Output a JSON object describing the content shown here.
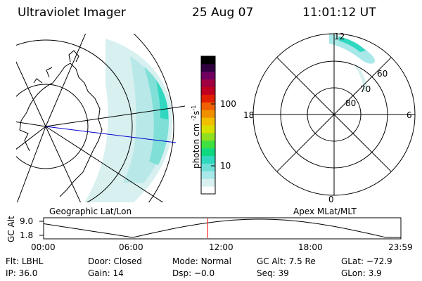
{
  "header": {
    "instrument": "Ultraviolet Imager",
    "date": "25 Aug 07",
    "time": "11:01:12 UT"
  },
  "geo_panel": {
    "label": "Geographic Lat/Lon"
  },
  "mag_panel": {
    "label": "Apex MLat/MLT",
    "lat_labels": [
      "60",
      "70",
      "80"
    ],
    "mlt_labels": [
      "12",
      "18",
      "6",
      "0"
    ]
  },
  "colorbar": {
    "unit": "photon cm",
    "unit_exp": "-2",
    "unit_s": "s",
    "unit_s_exp": "-1",
    "ticks": [
      "100",
      "10"
    ],
    "colors": [
      "#ffffff",
      "#d8f0f0",
      "#a8e8e8",
      "#70e0d8",
      "#30d8c0",
      "#10d880",
      "#40e040",
      "#90e020",
      "#d8e000",
      "#f0c000",
      "#f09000",
      "#f06000",
      "#e02000",
      "#c00020",
      "#a00040",
      "#700060",
      "#300040",
      "#000000"
    ]
  },
  "orbit_plot": {
    "ylabel": "GC Alt",
    "yticks": [
      "9.0",
      "1.8"
    ],
    "xticks": [
      "00:00",
      "06:00",
      "12:00",
      "18:00",
      "23:59"
    ],
    "current_time_hours": 11.02
  },
  "footer": {
    "row1": [
      {
        "key": "Flt:",
        "value": "LBHL"
      },
      {
        "key": "Door:",
        "value": "Closed"
      },
      {
        "key": "Mode:",
        "value": "Normal"
      },
      {
        "key": "GC Alt:",
        "value": "7.5 Re"
      },
      {
        "key": "GLat:",
        "value": "−72.9"
      }
    ],
    "row2": [
      {
        "key": "IP:",
        "value": "36.0"
      },
      {
        "key": "Gain:",
        "value": "14"
      },
      {
        "key": "Dsp:",
        "value": "−0.0"
      },
      {
        "key": "Seq:",
        "value": "39"
      },
      {
        "key": "GLon:",
        "value": "3.9"
      }
    ]
  }
}
